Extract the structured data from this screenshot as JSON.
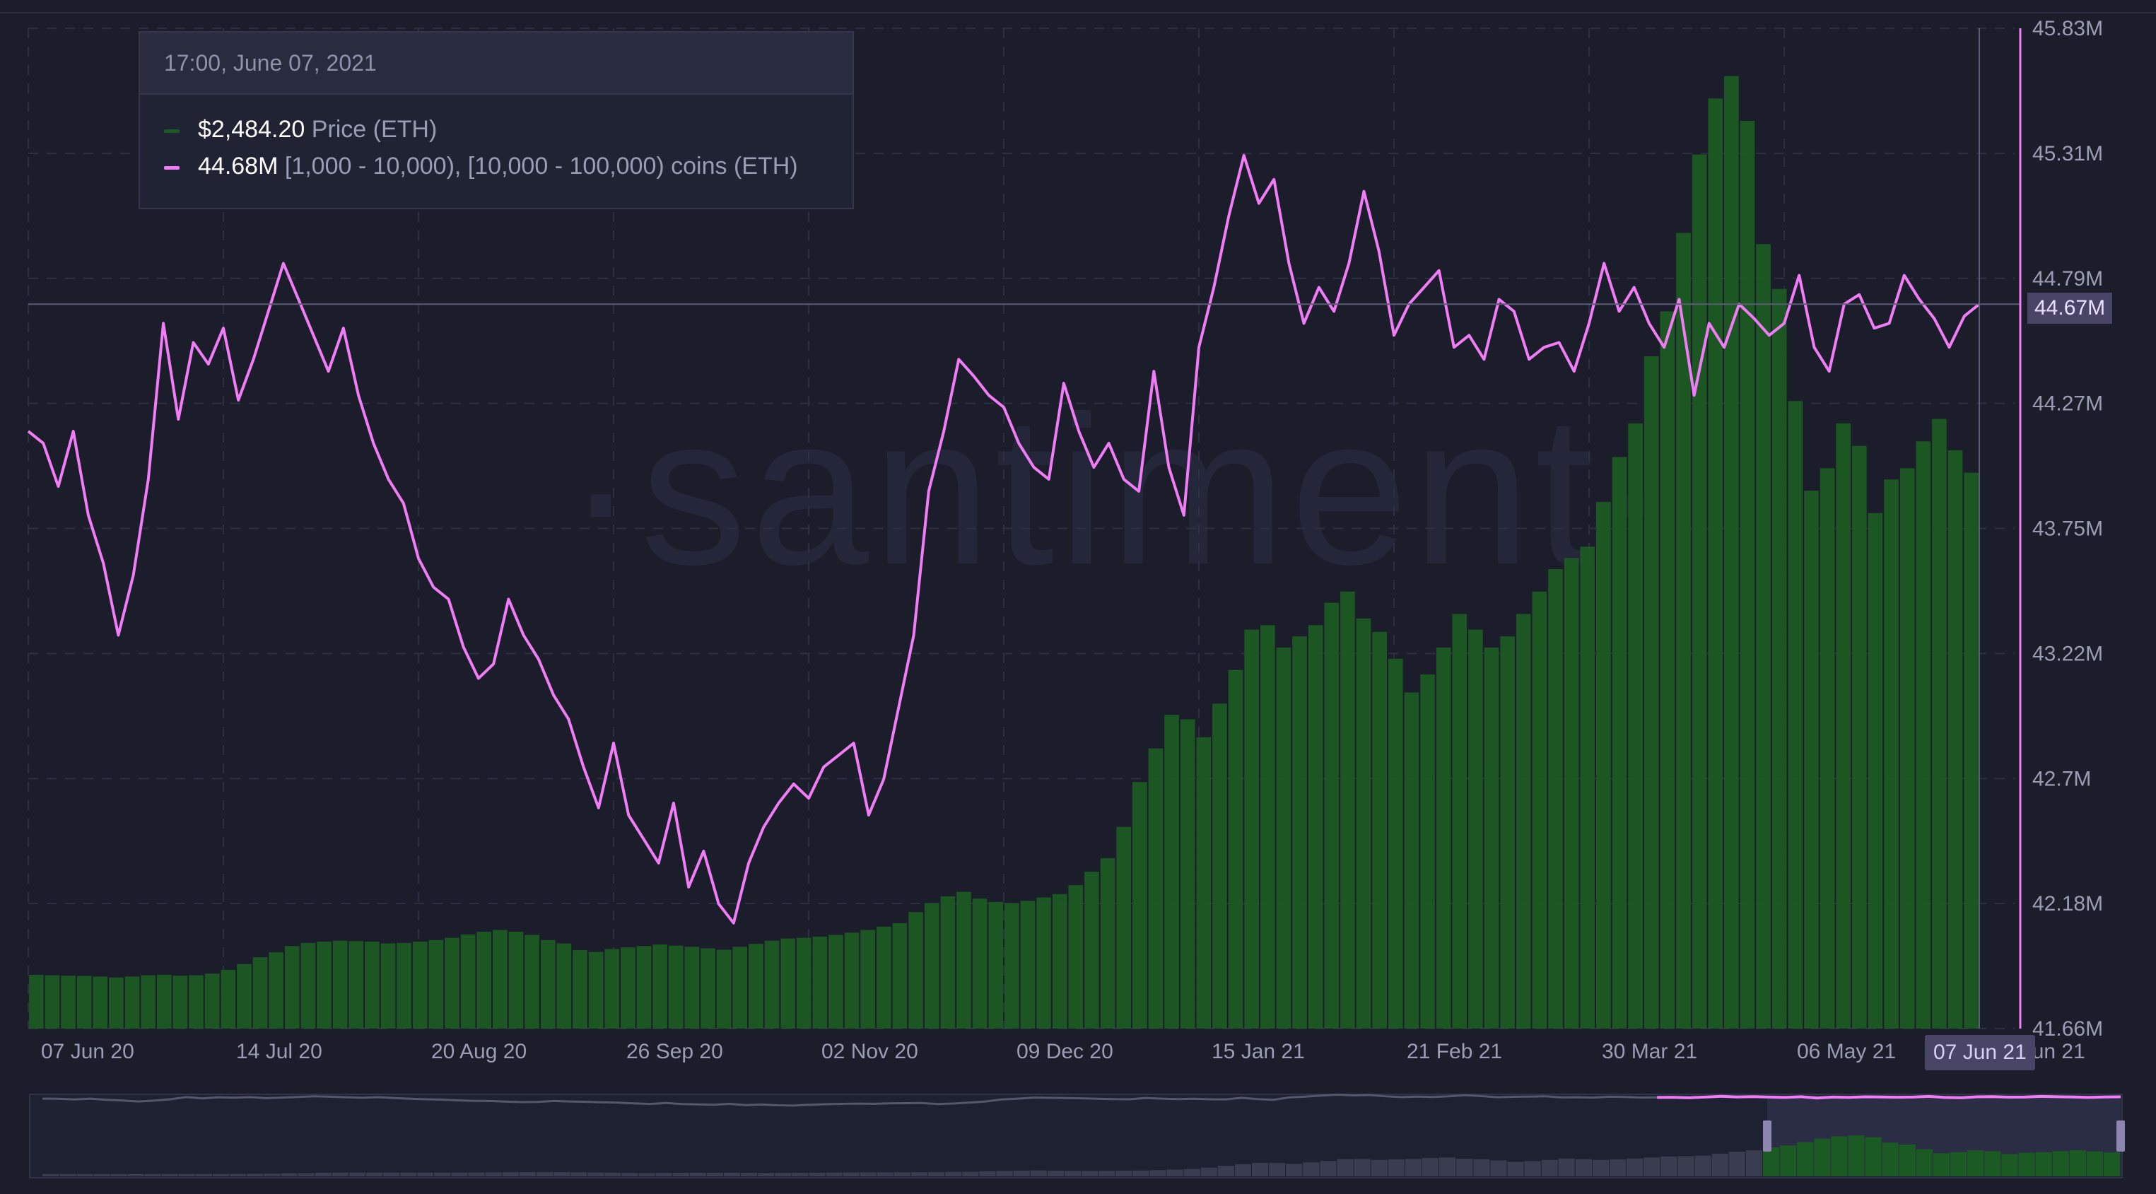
{
  "tooltip": {
    "date": "17:00, June 07, 2021",
    "rows": [
      {
        "value": "$2,484.20",
        "label": "Price (ETH)",
        "color": "#1c5a23"
      },
      {
        "value": "44.68M",
        "label": "[1,000 - 10,000), [10,000 - 100,000) coins (ETH)",
        "color": "#f07df5"
      }
    ]
  },
  "watermark": "·santiment·",
  "hover": {
    "date_label": "07 Jun 21",
    "value_label": "44.67M"
  },
  "colors": {
    "background": "#1b1d2b",
    "balance": "#f07df5",
    "price_bar": "#1c5a23",
    "grid": "#2d3042",
    "axis_text": "#9a9eb5"
  },
  "chart_data": {
    "type": "line",
    "x_start": "2020-06-07",
    "x_end": "2021-06-07",
    "xlim": [
      "2020-06-07",
      "2021-06-07"
    ],
    "x_ticks": [
      "07 Jun 20",
      "14 Jul 20",
      "20 Aug 20",
      "26 Sep 20",
      "02 Nov 20",
      "09 Dec 20",
      "15 Jan 21",
      "21 Feb 21",
      "30 Mar 21",
      "06 May 21",
      "07 Jun 21"
    ],
    "y_ticks": [
      "41.66M",
      "42.18M",
      "42.7M",
      "43.22M",
      "43.75M",
      "44.27M",
      "44.79M",
      "45.31M",
      "45.83M"
    ],
    "ylim": [
      41.66,
      45.83
    ],
    "grid": true,
    "series": [
      {
        "name": "[1,000 - 10,000), [10,000 - 100,000) coins (ETH)",
        "axis": "right",
        "unit": "M",
        "color": "#f07df5",
        "values": [
          44.15,
          44.1,
          43.92,
          44.15,
          43.8,
          43.6,
          43.3,
          43.55,
          43.95,
          44.6,
          44.2,
          44.52,
          44.43,
          44.58,
          44.28,
          44.45,
          44.65,
          44.85,
          44.7,
          44.55,
          44.4,
          44.58,
          44.3,
          44.1,
          43.95,
          43.85,
          43.62,
          43.5,
          43.45,
          43.25,
          43.12,
          43.18,
          43.45,
          43.3,
          43.2,
          43.05,
          42.95,
          42.75,
          42.58,
          42.85,
          42.55,
          42.45,
          42.35,
          42.6,
          42.25,
          42.4,
          42.18,
          42.1,
          42.35,
          42.5,
          42.6,
          42.68,
          42.62,
          42.75,
          42.8,
          42.85,
          42.55,
          42.7,
          43.0,
          43.3,
          43.9,
          44.15,
          44.45,
          44.38,
          44.3,
          44.25,
          44.1,
          44.0,
          43.95,
          44.35,
          44.15,
          44.0,
          44.1,
          43.95,
          43.9,
          44.4,
          44.0,
          43.8,
          44.5,
          44.75,
          45.05,
          45.3,
          45.1,
          45.2,
          44.85,
          44.6,
          44.75,
          44.65,
          44.85,
          45.15,
          44.9,
          44.55,
          44.68,
          44.75,
          44.82,
          44.5,
          44.55,
          44.45,
          44.7,
          44.65,
          44.45,
          44.5,
          44.52,
          44.4,
          44.6,
          44.85,
          44.65,
          44.75,
          44.6,
          44.5,
          44.7,
          44.3,
          44.6,
          44.5,
          44.68,
          44.62,
          44.55,
          44.6,
          44.8,
          44.5,
          44.4,
          44.68,
          44.72,
          44.58,
          44.6,
          44.8,
          44.7,
          44.62,
          44.5,
          44.63,
          44.68
        ]
      },
      {
        "name": "Price (ETH)",
        "axis": "hidden",
        "unit": "USD",
        "color": "#1c5a23",
        "values": [
          240,
          238,
          236,
          235,
          232,
          228,
          232,
          238,
          240,
          236,
          238,
          245,
          262,
          288,
          318,
          340,
          368,
          382,
          388,
          392,
          390,
          388,
          380,
          382,
          388,
          395,
          405,
          420,
          432,
          440,
          432,
          418,
          395,
          380,
          350,
          342,
          355,
          362,
          368,
          375,
          370,
          365,
          358,
          352,
          365,
          378,
          392,
          402,
          405,
          410,
          418,
          428,
          440,
          455,
          470,
          520,
          560,
          590,
          610,
          580,
          565,
          560,
          570,
          585,
          600,
          640,
          700,
          760,
          900,
          1100,
          1250,
          1400,
          1380,
          1300,
          1450,
          1600,
          1780,
          1800,
          1700,
          1750,
          1800,
          1900,
          1950,
          1830,
          1770,
          1650,
          1500,
          1580,
          1700,
          1850,
          1780,
          1700,
          1750,
          1850,
          1950,
          2050,
          2100,
          2150,
          2350,
          2550,
          2700,
          3000,
          3200,
          3550,
          3900,
          4150,
          4250,
          4050,
          3500,
          3300,
          2800,
          2400,
          2500,
          2700,
          2600,
          2300,
          2450,
          2500,
          2620,
          2720,
          2580,
          2480
        ]
      }
    ]
  },
  "price_scale_max": 4400
}
